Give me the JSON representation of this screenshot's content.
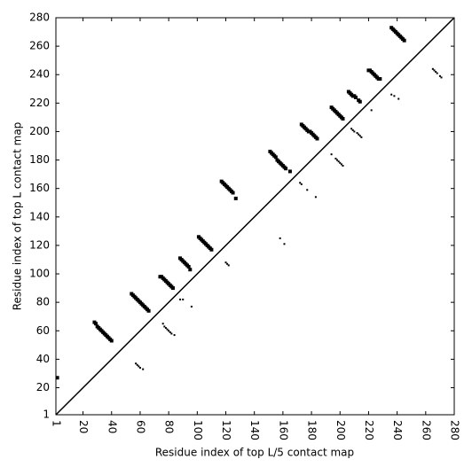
{
  "chart_data": {
    "type": "scatter",
    "xlabel": "Residue index of top L/5 contact map",
    "ylabel": "Residue index of top L contact map",
    "xlim": [
      1,
      280
    ],
    "ylim": [
      1,
      280
    ],
    "xticks": [
      1,
      20,
      40,
      60,
      80,
      100,
      120,
      140,
      160,
      180,
      200,
      220,
      240,
      260,
      280
    ],
    "yticks": [
      1,
      20,
      40,
      60,
      80,
      100,
      120,
      140,
      160,
      180,
      200,
      220,
      240,
      260,
      280
    ],
    "diagonal": true,
    "series": [
      {
        "color": "#000000",
        "size": 4,
        "x": [
          2,
          28,
          29,
          30,
          31,
          32,
          33,
          34,
          35,
          36,
          37,
          38,
          39,
          40,
          54,
          55,
          56,
          57,
          58,
          59,
          60,
          61,
          62,
          63,
          64,
          65,
          66,
          74,
          75,
          76,
          77,
          78,
          79,
          80,
          81,
          82,
          83,
          88,
          89,
          90,
          91,
          92,
          93,
          94,
          95,
          101,
          102,
          103,
          104,
          105,
          106,
          107,
          108,
          109,
          110,
          117,
          118,
          119,
          120,
          121,
          122,
          123,
          124,
          125,
          127,
          151,
          152,
          153,
          154,
          155,
          156,
          157,
          158,
          159,
          160,
          161,
          162,
          165,
          173,
          174,
          175,
          176,
          177,
          178,
          179,
          180,
          181,
          182,
          183,
          184,
          194,
          195,
          196,
          197,
          198,
          199,
          200,
          201,
          202,
          206,
          207,
          208,
          209,
          210,
          211,
          213,
          214,
          220,
          221,
          222,
          223,
          224,
          225,
          226,
          227,
          228,
          236,
          237,
          238,
          239,
          240,
          241,
          242,
          243,
          244,
          245
        ],
        "y": [
          27,
          66,
          65,
          63,
          62,
          61,
          60,
          59,
          58,
          57,
          56,
          55,
          54,
          53,
          86,
          85,
          84,
          83,
          82,
          81,
          80,
          79,
          78,
          77,
          76,
          75,
          74,
          98,
          98,
          97,
          96,
          95,
          94,
          93,
          92,
          91,
          90,
          111,
          110,
          109,
          108,
          107,
          106,
          105,
          103,
          126,
          125,
          124,
          123,
          122,
          121,
          120,
          119,
          118,
          117,
          165,
          164,
          163,
          162,
          161,
          160,
          159,
          158,
          157,
          153,
          186,
          185,
          184,
          183,
          182,
          180,
          179,
          178,
          177,
          176,
          175,
          174,
          172,
          205,
          204,
          203,
          202,
          201,
          200,
          200,
          199,
          198,
          197,
          196,
          195,
          217,
          216,
          215,
          214,
          213,
          212,
          211,
          210,
          209,
          228,
          227,
          226,
          225,
          225,
          224,
          222,
          221,
          243,
          243,
          242,
          241,
          240,
          239,
          238,
          237,
          237,
          273,
          272,
          271,
          270,
          269,
          268,
          267,
          266,
          265,
          264
        ]
      },
      {
        "color": "#000000",
        "size": 2,
        "x": [
          57,
          58,
          59,
          60,
          62,
          76,
          77,
          78,
          79,
          80,
          81,
          82,
          84,
          88,
          90,
          96,
          120,
          121,
          122,
          158,
          161,
          172,
          173,
          177,
          183,
          194,
          197,
          198,
          199,
          200,
          201,
          202,
          208,
          209,
          210,
          212,
          213,
          214,
          215,
          222,
          236,
          238,
          241,
          265,
          266,
          267,
          268,
          270,
          271
        ],
        "y": [
          37,
          36,
          35,
          34,
          33,
          65,
          63,
          62,
          61,
          60,
          59,
          58,
          57,
          82,
          82,
          77,
          108,
          107,
          106,
          125,
          121,
          164,
          163,
          159,
          154,
          184,
          181,
          180,
          179,
          178,
          177,
          176,
          202,
          201,
          200,
          199,
          198,
          197,
          196,
          215,
          226,
          225,
          223,
          244,
          243,
          242,
          241,
          239,
          238
        ]
      }
    ]
  }
}
